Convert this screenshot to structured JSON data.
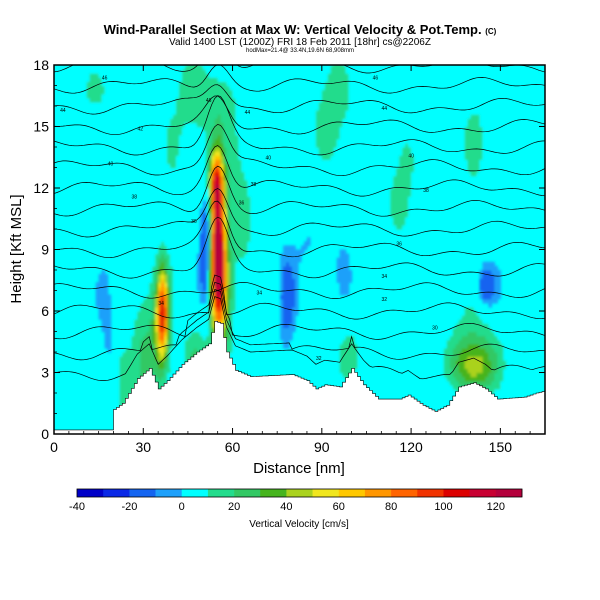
{
  "header": {
    "title": "Wind-Parallel Section at Max W: Vertical Velocity & Pot.Temp.",
    "copyright": "(C)",
    "subtitle": "Valid 1400 LST (1200Z) FRI 18 Feb 2011 [18hr] cs@2206Z",
    "subsubtitle": "hodMax=21.4@ 33.4N,19.6N 68,908mm"
  },
  "colors": {
    "background": "#00ffff",
    "terrain": "#ffffff"
  },
  "chart_data": {
    "type": "heatmap",
    "xlabel": "Distance [nm]",
    "ylabel": "Height [Kft MSL]",
    "xlim": [
      0,
      165
    ],
    "ylim": [
      0,
      18
    ],
    "xticks": [
      "0",
      "30",
      "60",
      "90",
      "120",
      "150"
    ],
    "yticks": [
      "0",
      "3",
      "6",
      "9",
      "12",
      "15",
      "18"
    ],
    "colorbar": {
      "title": "Vertical Velocity [cm/s]",
      "min": -40,
      "max": 130,
      "step": 10,
      "tick_labels": [
        "-40",
        "-20",
        "0",
        "20",
        "40",
        "60",
        "80",
        "100",
        "120"
      ],
      "colors": [
        "#0000c8",
        "#0a28e6",
        "#1464f0",
        "#1ea0fa",
        "#00ffff",
        "#23dc8c",
        "#32c864",
        "#46b41e",
        "#aad21e",
        "#f0e61e",
        "#ffc800",
        "#ff9600",
        "#ff6400",
        "#f03200",
        "#dc0000",
        "#c80032",
        "#b4003c"
      ]
    },
    "terrain": [
      {
        "x": 0,
        "h": 0.2
      },
      {
        "x": 19,
        "h": 0.2
      },
      {
        "x": 20,
        "h": 1.2
      },
      {
        "x": 23,
        "h": 1.5
      },
      {
        "x": 28,
        "h": 2.7
      },
      {
        "x": 32,
        "h": 3.2
      },
      {
        "x": 35,
        "h": 2.2
      },
      {
        "x": 38,
        "h": 2.6
      },
      {
        "x": 43,
        "h": 3.4
      },
      {
        "x": 48,
        "h": 4.0
      },
      {
        "x": 52,
        "h": 4.4
      },
      {
        "x": 54,
        "h": 5.5
      },
      {
        "x": 56,
        "h": 5.4
      },
      {
        "x": 58,
        "h": 4.0
      },
      {
        "x": 61,
        "h": 3.1
      },
      {
        "x": 66,
        "h": 2.8
      },
      {
        "x": 80,
        "h": 2.9
      },
      {
        "x": 85,
        "h": 2.6
      },
      {
        "x": 88,
        "h": 2.2
      },
      {
        "x": 91,
        "h": 2.4
      },
      {
        "x": 96,
        "h": 2.3
      },
      {
        "x": 100,
        "h": 3.2
      },
      {
        "x": 104,
        "h": 2.4
      },
      {
        "x": 109,
        "h": 1.7
      },
      {
        "x": 116,
        "h": 1.7
      },
      {
        "x": 119,
        "h": 1.9
      },
      {
        "x": 124,
        "h": 1.4
      },
      {
        "x": 128,
        "h": 1.1
      },
      {
        "x": 132,
        "h": 1.4
      },
      {
        "x": 136,
        "h": 2.3
      },
      {
        "x": 141,
        "h": 2.5
      },
      {
        "x": 145,
        "h": 2.2
      },
      {
        "x": 149,
        "h": 1.7
      },
      {
        "x": 158,
        "h": 1.8
      },
      {
        "x": 162,
        "h": 2.0
      },
      {
        "x": 165,
        "h": 2.1
      }
    ],
    "updraft_cells": [
      {
        "x": 36.5,
        "y": 6.1,
        "sx": 1.2,
        "sy": 1.3,
        "w": 70
      },
      {
        "x": 36,
        "y": 5.0,
        "sx": 2.0,
        "sy": 1.8,
        "w": 40
      },
      {
        "x": 55,
        "y": 9.0,
        "sx": 1.8,
        "sy": 2.2,
        "w": 125
      },
      {
        "x": 54.5,
        "y": 12.3,
        "sx": 1.5,
        "sy": 1.0,
        "w": 70
      },
      {
        "x": 56,
        "y": 6.5,
        "sx": 2.3,
        "sy": 2.2,
        "w": 45
      },
      {
        "x": 57,
        "y": 14.0,
        "sx": 3.0,
        "sy": 3.0,
        "w": 15
      },
      {
        "x": 63,
        "y": 10.0,
        "sx": 3.0,
        "sy": 5.0,
        "w": 10
      },
      {
        "x": 40,
        "y": 12.5,
        "sx": 5.0,
        "sy": 4.0,
        "w": 10
      },
      {
        "x": 48,
        "y": 3.3,
        "sx": 3.0,
        "sy": 1.2,
        "w": 20
      },
      {
        "x": 30,
        "y": 3.6,
        "sx": 3.0,
        "sy": 2.5,
        "w": 20
      },
      {
        "x": 23,
        "y": 2.8,
        "sx": 2.0,
        "sy": 1.5,
        "w": 18
      },
      {
        "x": 50,
        "y": 16.5,
        "sx": 5.0,
        "sy": 1.5,
        "w": 12
      },
      {
        "x": 15,
        "y": 16.8,
        "sx": 5.0,
        "sy": 1.2,
        "w": 12
      },
      {
        "x": 93,
        "y": 15.5,
        "sx": 6.0,
        "sy": 3.0,
        "w": 12
      },
      {
        "x": 116,
        "y": 15.0,
        "sx": 4.0,
        "sy": 3.0,
        "w": 10
      },
      {
        "x": 141,
        "y": 12.5,
        "sx": 5.0,
        "sy": 5.0,
        "w": 10
      },
      {
        "x": 104,
        "y": 9.5,
        "sx": 4.0,
        "sy": 2.0,
        "w": 10
      },
      {
        "x": 122,
        "y": 11.5,
        "sx": 6.0,
        "sy": 3.0,
        "w": 6
      },
      {
        "x": 141,
        "y": 3.2,
        "sx": 5.0,
        "sy": 0.8,
        "w": 30
      },
      {
        "x": 140,
        "y": 4.0,
        "sx": 7.0,
        "sy": 1.2,
        "w": 18
      },
      {
        "x": 100,
        "y": 4.0,
        "sx": 4.0,
        "sy": 1.5,
        "w": 10
      },
      {
        "x": 72,
        "y": 5.0,
        "sx": 5.0,
        "sy": 2.0,
        "w": 8
      },
      {
        "x": 8,
        "y": 6.0,
        "sx": 4.0,
        "sy": 3.0,
        "w": 6
      }
    ],
    "downdraft_cells": [
      {
        "x": 51.5,
        "y": 9.0,
        "sx": 1.6,
        "sy": 2.0,
        "w": -30
      },
      {
        "x": 78,
        "y": 6.5,
        "sx": 2.5,
        "sy": 2.0,
        "w": -18
      },
      {
        "x": 145,
        "y": 7.3,
        "sx": 2.5,
        "sy": 0.8,
        "w": -20
      },
      {
        "x": 98,
        "y": 8.5,
        "sx": 2.5,
        "sy": 1.5,
        "w": -8
      },
      {
        "x": 84,
        "y": 9.2,
        "sx": 3.0,
        "sy": 1.0,
        "w": -6
      },
      {
        "x": 58,
        "y": 14.5,
        "sx": 1.0,
        "sy": 1.0,
        "w": -10
      },
      {
        "x": 18,
        "y": 7.0,
        "sx": 3.0,
        "sy": 2.5,
        "w": -6
      },
      {
        "x": 130,
        "y": 6.0,
        "sx": 4.0,
        "sy": 2.0,
        "w": -6
      }
    ],
    "contour_labels": [
      {
        "x": 17,
        "y": 17.3,
        "text": "46"
      },
      {
        "x": 3,
        "y": 15.7,
        "text": "44"
      },
      {
        "x": 29,
        "y": 14.8,
        "text": "42"
      },
      {
        "x": 19,
        "y": 13.1,
        "text": "40"
      },
      {
        "x": 27,
        "y": 11.5,
        "text": "38"
      },
      {
        "x": 47,
        "y": 10.3,
        "text": "36"
      },
      {
        "x": 36,
        "y": 6.3,
        "text": "34"
      },
      {
        "x": 52,
        "y": 16.2,
        "text": "46"
      },
      {
        "x": 65,
        "y": 15.6,
        "text": "44"
      },
      {
        "x": 72,
        "y": 13.4,
        "text": "40"
      },
      {
        "x": 67,
        "y": 12.1,
        "text": "38"
      },
      {
        "x": 63,
        "y": 11.2,
        "text": "36"
      },
      {
        "x": 69,
        "y": 6.8,
        "text": "34"
      },
      {
        "x": 89,
        "y": 3.6,
        "text": "32"
      },
      {
        "x": 108,
        "y": 17.3,
        "text": "46"
      },
      {
        "x": 111,
        "y": 15.8,
        "text": "44"
      },
      {
        "x": 120,
        "y": 13.5,
        "text": "40"
      },
      {
        "x": 125,
        "y": 11.8,
        "text": "38"
      },
      {
        "x": 116,
        "y": 9.2,
        "text": "36"
      },
      {
        "x": 111,
        "y": 7.6,
        "text": "34"
      },
      {
        "x": 111,
        "y": 6.5,
        "text": "32"
      },
      {
        "x": 128,
        "y": 5.1,
        "text": "30"
      }
    ]
  }
}
